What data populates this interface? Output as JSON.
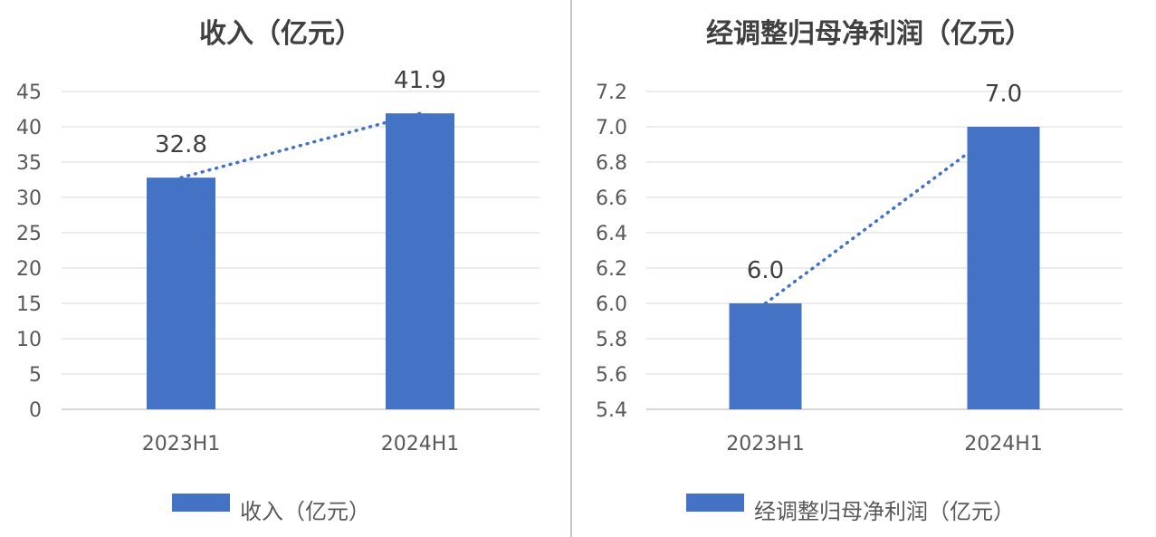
{
  "colors": {
    "bar": "#4472c4",
    "divider": "#c8c8c8"
  },
  "chart_data": [
    {
      "type": "bar",
      "title": "收入（亿元）",
      "categories": [
        "2023H1",
        "2024H1"
      ],
      "series": [
        {
          "name": "收入（亿元）",
          "values": [
            32.8,
            41.9
          ]
        }
      ],
      "data_labels": [
        "32.8",
        "41.9"
      ],
      "ylim": [
        0,
        45
      ],
      "yticks": [
        "0",
        "5",
        "10",
        "15",
        "20",
        "25",
        "30",
        "35",
        "40",
        "45"
      ],
      "ytick_values": [
        0,
        5,
        10,
        15,
        20,
        25,
        30,
        35,
        40,
        45
      ],
      "trendline": "dotted-linear",
      "grid": true,
      "legend": "bottom"
    },
    {
      "type": "bar",
      "title": "经调整归母净利润（亿元）",
      "categories": [
        "2023H1",
        "2024H1"
      ],
      "series": [
        {
          "name": "经调整归母净利润（亿元）",
          "values": [
            6.0,
            7.0
          ]
        }
      ],
      "data_labels": [
        "6.0",
        "7.0"
      ],
      "ylim": [
        5.4,
        7.2
      ],
      "yticks": [
        "5.4",
        "5.6",
        "5.8",
        "6.0",
        "6.2",
        "6.4",
        "6.6",
        "6.8",
        "7.0",
        "7.2"
      ],
      "ytick_values": [
        5.4,
        5.6,
        5.8,
        6.0,
        6.2,
        6.4,
        6.6,
        6.8,
        7.0,
        7.2
      ],
      "trendline": "dotted-linear",
      "grid": true,
      "legend": "bottom"
    }
  ]
}
